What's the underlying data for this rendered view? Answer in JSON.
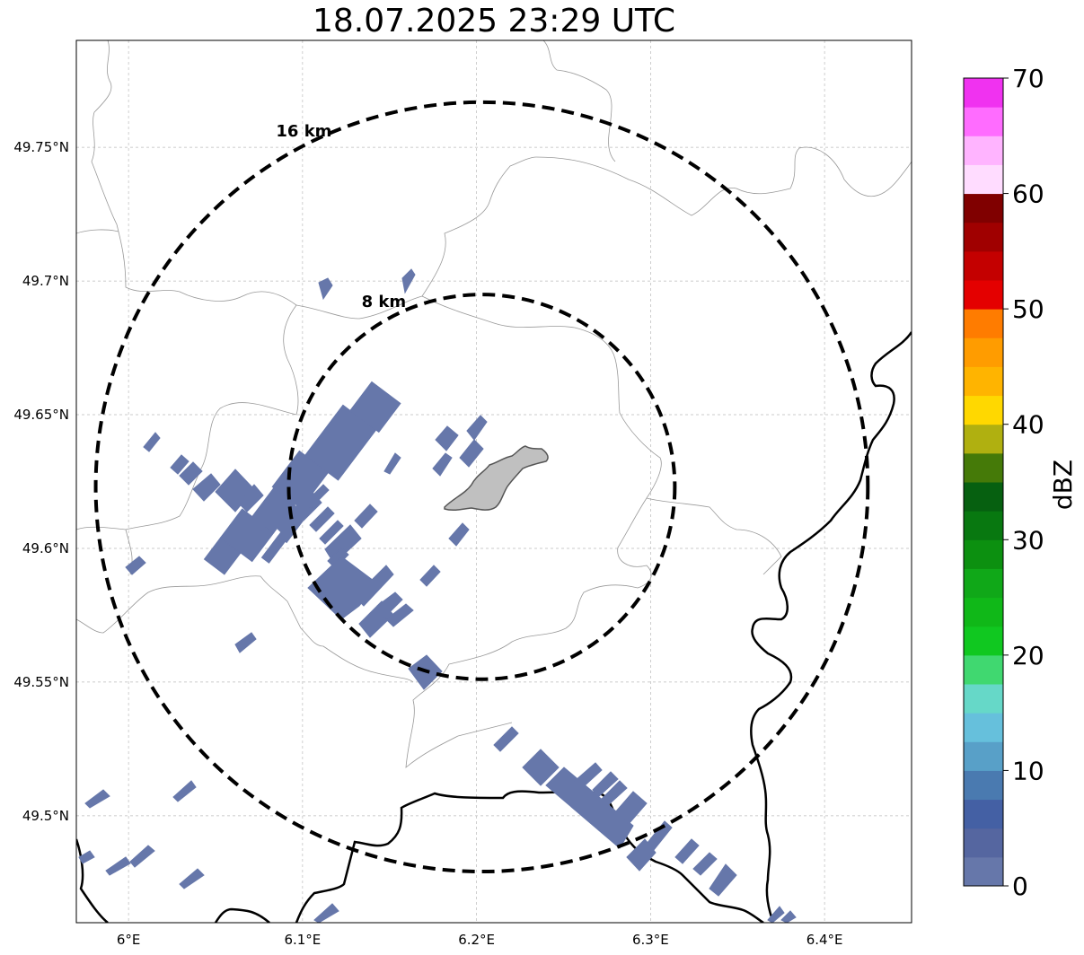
{
  "title": "18.07.2025 23:29 UTC",
  "map": {
    "lon_range": [
      5.97,
      6.45
    ],
    "lat_range": [
      49.46,
      49.79
    ],
    "lon_ticks": [
      {
        "value": 6.0,
        "label": "6°E"
      },
      {
        "value": 6.1,
        "label": "6.1°E"
      },
      {
        "value": 6.2,
        "label": "6.2°E"
      },
      {
        "value": 6.3,
        "label": "6.3°E"
      },
      {
        "value": 6.4,
        "label": "6.4°E"
      }
    ],
    "lat_ticks": [
      {
        "value": 49.5,
        "label": "49.5°N"
      },
      {
        "value": 49.55,
        "label": "49.55°N"
      },
      {
        "value": 49.6,
        "label": "49.6°N"
      },
      {
        "value": 49.65,
        "label": "49.65°N"
      },
      {
        "value": 49.7,
        "label": "49.7°N"
      },
      {
        "value": 49.75,
        "label": "49.75°N"
      }
    ],
    "gridlines": true,
    "range_rings": [
      {
        "radius_km": 8,
        "label": "8 km"
      },
      {
        "radius_km": 16,
        "label": "16 km"
      }
    ],
    "ring_center": {
      "lon": 6.203,
      "lat": 49.623
    },
    "echo_color": "#6677aa",
    "border_color": "#000000",
    "admin_line_color": "#999999",
    "city_fill": "#c0c0c0"
  },
  "colorbar": {
    "label": "dBZ",
    "range": [
      0,
      70
    ],
    "ticks": [
      0,
      10,
      20,
      30,
      40,
      50,
      60,
      70
    ],
    "colors": [
      "#6677aa",
      "#5566a0",
      "#4460a4",
      "#4a7ab0",
      "#58a0c8",
      "#66c0dc",
      "#66d8c8",
      "#40d870",
      "#10c820",
      "#10b818",
      "#10a818",
      "#0c9010",
      "#087810",
      "#066010",
      "#457a08",
      "#b0b010",
      "#ffd800",
      "#ffb400",
      "#ff9c00",
      "#ff7c00",
      "#e40000",
      "#c40000",
      "#a00000",
      "#800000",
      "#ffdcff",
      "#ffb4ff",
      "#ff6cff",
      "#f032f0"
    ]
  }
}
